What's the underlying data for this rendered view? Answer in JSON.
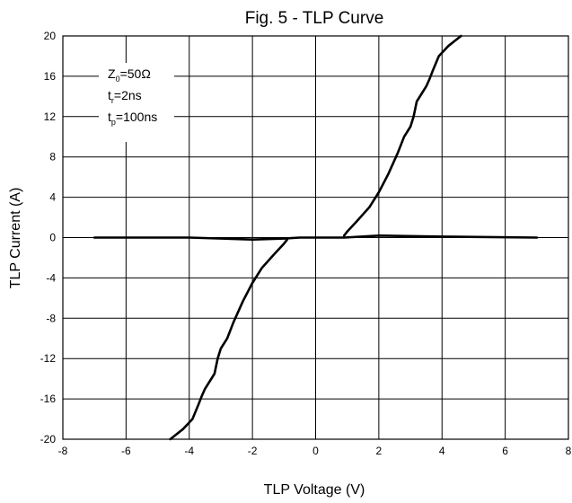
{
  "chart_data": {
    "type": "line",
    "title": "Fig. 5 - TLP Curve",
    "xlabel": "TLP Voltage (V)",
    "ylabel": "TLP Current (A)",
    "xlim": [
      -8,
      8
    ],
    "ylim": [
      -20,
      20
    ],
    "xticks": [
      -8,
      -6,
      -4,
      -2,
      0,
      2,
      4,
      6,
      8
    ],
    "yticks": [
      -20,
      -16,
      -12,
      -8,
      -4,
      0,
      4,
      8,
      12,
      16,
      20
    ],
    "grid": true,
    "annotation": [
      {
        "base": "Z",
        "sub": "0",
        "rest": "=50Ω"
      },
      {
        "base": "t",
        "sub": "r",
        "rest": "=2ns"
      },
      {
        "base": "t",
        "sub": "p",
        "rest": "=100ns"
      }
    ],
    "series": [
      {
        "x": [
          -7.0,
          -4.0,
          -2.0,
          -1.0,
          -0.5,
          0.0,
          0.5,
          0.9,
          2.0,
          4.0,
          7.0
        ],
        "y": [
          0.0,
          0.0,
          -0.2,
          -0.1,
          0.0,
          0.0,
          0.0,
          0.0,
          0.2,
          0.1,
          0.0
        ]
      },
      {
        "x": [
          0.9,
          1.0,
          1.3,
          1.7,
          2.0,
          2.3,
          2.6,
          2.8,
          3.0,
          3.1,
          3.2,
          3.5,
          3.6,
          3.7,
          3.9,
          4.2,
          4.6
        ],
        "y": [
          0.2,
          0.6,
          1.6,
          3.0,
          4.5,
          6.3,
          8.4,
          10.0,
          11.0,
          12.0,
          13.5,
          15.0,
          15.7,
          16.5,
          18.0,
          19.0,
          20.0
        ]
      },
      {
        "x": [
          -0.9,
          -1.0,
          -1.3,
          -1.7,
          -2.0,
          -2.3,
          -2.6,
          -2.8,
          -3.0,
          -3.1,
          -3.2,
          -3.5,
          -3.6,
          -3.7,
          -3.9,
          -4.2,
          -4.6
        ],
        "y": [
          -0.2,
          -0.6,
          -1.6,
          -3.0,
          -4.5,
          -6.3,
          -8.4,
          -10.0,
          -11.0,
          -12.0,
          -13.5,
          -15.0,
          -15.7,
          -16.5,
          -18.0,
          -19.0,
          -20.0
        ]
      }
    ]
  }
}
